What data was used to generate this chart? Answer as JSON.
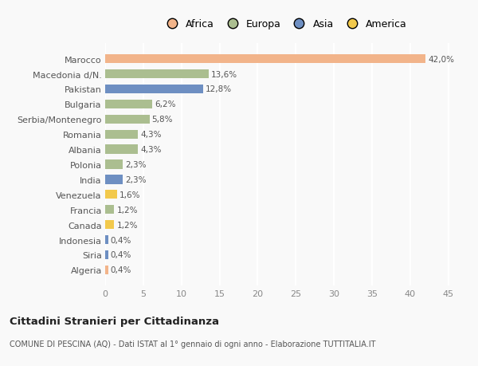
{
  "categories": [
    "Marocco",
    "Macedonia d/N.",
    "Pakistan",
    "Bulgaria",
    "Serbia/Montenegro",
    "Romania",
    "Albania",
    "Polonia",
    "India",
    "Venezuela",
    "Francia",
    "Canada",
    "Indonesia",
    "Siria",
    "Algeria"
  ],
  "values": [
    42.0,
    13.6,
    12.8,
    6.2,
    5.8,
    4.3,
    4.3,
    2.3,
    2.3,
    1.6,
    1.2,
    1.2,
    0.4,
    0.4,
    0.4
  ],
  "labels": [
    "42,0%",
    "13,6%",
    "12,8%",
    "6,2%",
    "5,8%",
    "4,3%",
    "4,3%",
    "2,3%",
    "2,3%",
    "1,6%",
    "1,2%",
    "1,2%",
    "0,4%",
    "0,4%",
    "0,4%"
  ],
  "continents": [
    "Africa",
    "Europa",
    "Asia",
    "Europa",
    "Europa",
    "Europa",
    "Europa",
    "Europa",
    "Asia",
    "America",
    "Europa",
    "America",
    "Asia",
    "Asia",
    "Africa"
  ],
  "colors": {
    "Africa": "#F2B48A",
    "Europa": "#ABBE90",
    "Asia": "#6E8FC2",
    "America": "#F2C94C"
  },
  "xlim": [
    0,
    47
  ],
  "xticks": [
    0,
    5,
    10,
    15,
    20,
    25,
    30,
    35,
    40,
    45
  ],
  "title1": "Cittadini Stranieri per Cittadinanza",
  "title2": "COMUNE DI PESCINA (AQ) - Dati ISTAT al 1° gennaio di ogni anno - Elaborazione TUTTITALIA.IT",
  "background_color": "#f9f9f9",
  "grid_color": "#ffffff",
  "bar_height": 0.6,
  "legend_order": [
    "Africa",
    "Europa",
    "Asia",
    "America"
  ]
}
